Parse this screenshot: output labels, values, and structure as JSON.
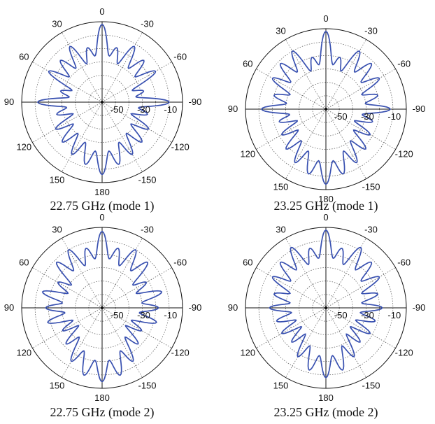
{
  "colors": {
    "trace": "#3850b0",
    "axis": "#111111",
    "grid": "#666666"
  },
  "chart_data": [
    {
      "type": "polar-line",
      "caption": "22.75 GHz (mode 1)",
      "angle_labels": [
        "0",
        "30",
        "60",
        "90",
        "120",
        "150",
        "180",
        "-150",
        "-120",
        "-90",
        "-60",
        "-30"
      ],
      "radial_labels": [
        "-50",
        "-30",
        "-10"
      ],
      "rlim": [
        -60,
        0
      ],
      "series": [
        {
          "angle_deg": [
            -180,
            -165,
            -150,
            -135,
            -120,
            -105,
            -90,
            -75,
            -60,
            -45,
            -30,
            -15,
            0,
            15,
            30,
            45,
            60,
            75,
            90,
            105,
            120,
            135,
            150,
            165,
            180
          ],
          "gain_db": [
            -6,
            -12,
            -15,
            -18,
            -20,
            -25,
            -10,
            -28,
            -14,
            -16,
            -12,
            -18,
            -2,
            -18,
            -12,
            -16,
            -14,
            -28,
            -12,
            -25,
            -20,
            -18,
            -15,
            -12,
            -6
          ]
        }
      ]
    },
    {
      "type": "polar-line",
      "caption": "23.25 GHz (mode 1)",
      "angle_labels": [
        "0",
        "30",
        "60",
        "90",
        "120",
        "150",
        "180",
        "-150",
        "-120",
        "-90",
        "-60",
        "-30"
      ],
      "radial_labels": [
        "-50",
        "-30",
        "-10"
      ],
      "rlim": [
        -60,
        0
      ],
      "series": [
        {
          "angle_deg": [
            -180,
            -165,
            -150,
            -135,
            -120,
            -105,
            -90,
            -75,
            -60,
            -45,
            -30,
            -15,
            0,
            15,
            30,
            45,
            60,
            75,
            90,
            105,
            120,
            135,
            150,
            165,
            180
          ],
          "gain_db": [
            -4,
            -10,
            -14,
            -18,
            -22,
            -24,
            -12,
            -20,
            -14,
            -12,
            -10,
            -20,
            -2,
            -20,
            -10,
            -12,
            -14,
            -20,
            -12,
            -24,
            -22,
            -18,
            -14,
            -10,
            -4
          ]
        }
      ]
    },
    {
      "type": "polar-line",
      "caption": "22.75 GHz (mode 2)",
      "angle_labels": [
        "0",
        "30",
        "60",
        "90",
        "120",
        "150",
        "180",
        "-150",
        "-120",
        "-90",
        "-60",
        "-30"
      ],
      "radial_labels": [
        "-50",
        "-30",
        "-10"
      ],
      "rlim": [
        -60,
        0
      ],
      "series": [
        {
          "angle_deg": [
            -180,
            -165,
            -150,
            -135,
            -120,
            -105,
            -90,
            -75,
            -60,
            -45,
            -30,
            -15,
            0,
            15,
            30,
            45,
            60,
            75,
            90,
            105,
            120,
            135,
            150,
            165,
            180
          ],
          "gain_db": [
            -5,
            -8,
            -14,
            -22,
            -26,
            -18,
            -18,
            -14,
            -22,
            -12,
            -10,
            -14,
            -3,
            -14,
            -10,
            -12,
            -22,
            -14,
            -18,
            -18,
            -26,
            -22,
            -14,
            -8,
            -5
          ]
        }
      ]
    },
    {
      "type": "polar-line",
      "caption": "23.25 GHz (mode 2)",
      "angle_labels": [
        "0",
        "30",
        "60",
        "90",
        "120",
        "150",
        "180",
        "-150",
        "-120",
        "-90",
        "-60",
        "-30"
      ],
      "radial_labels": [
        "-50",
        "-30",
        "-10"
      ],
      "rlim": [
        -60,
        0
      ],
      "series": [
        {
          "angle_deg": [
            -180,
            -165,
            -150,
            -135,
            -120,
            -105,
            -90,
            -75,
            -60,
            -45,
            -30,
            -15,
            0,
            15,
            30,
            45,
            60,
            75,
            90,
            105,
            120,
            135,
            150,
            165,
            180
          ],
          "gain_db": [
            -8,
            -12,
            -18,
            -24,
            -22,
            -22,
            -18,
            -20,
            -14,
            -12,
            -8,
            -14,
            -2,
            -14,
            -8,
            -12,
            -14,
            -20,
            -18,
            -22,
            -22,
            -24,
            -18,
            -12,
            -8
          ]
        }
      ]
    }
  ]
}
